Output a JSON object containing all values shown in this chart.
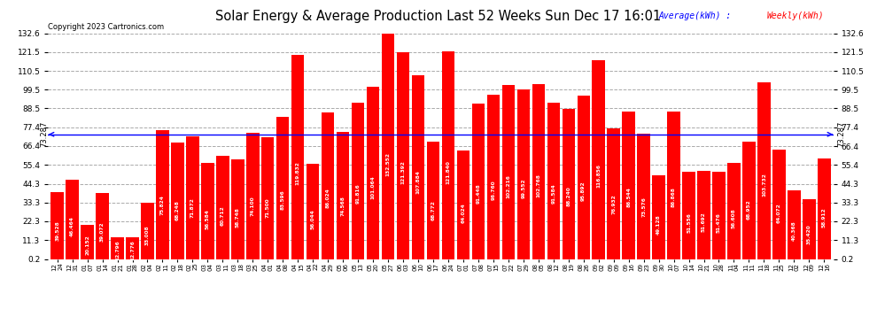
{
  "title": "Solar Energy & Average Production Last 52 Weeks Sun Dec 17 16:01",
  "copyright": "Copyright 2023 Cartronics.com",
  "average_label": "Average(kWh)",
  "weekly_label": "Weekly(kWh)",
  "average_value": 73.287,
  "bar_color": "#FF0000",
  "average_line_color": "#0000FF",
  "background_color": "#FFFFFF",
  "grid_color": "#AAAAAA",
  "ylim_min": 0.2,
  "ylim_max": 132.6,
  "yticks": [
    0.2,
    11.3,
    22.3,
    33.3,
    44.3,
    55.4,
    66.4,
    77.4,
    88.5,
    99.5,
    110.5,
    121.5,
    132.6
  ],
  "categories": [
    "12-24",
    "12-31",
    "01-07",
    "01-14",
    "01-21",
    "01-28",
    "02-04",
    "02-11",
    "02-18",
    "02-25",
    "03-04",
    "03-11",
    "03-18",
    "03-25",
    "04-01",
    "04-08",
    "04-15",
    "04-22",
    "04-29",
    "05-06",
    "05-13",
    "05-20",
    "05-27",
    "06-03",
    "06-10",
    "06-17",
    "06-24",
    "07-01",
    "07-08",
    "07-15",
    "07-22",
    "07-29",
    "08-05",
    "08-12",
    "08-19",
    "08-26",
    "09-02",
    "09-09",
    "09-16",
    "09-23",
    "09-30",
    "10-07",
    "10-14",
    "10-21",
    "10-28",
    "11-04",
    "11-11",
    "11-18",
    "11-25",
    "12-02",
    "12-09",
    "12-16"
  ],
  "values": [
    39.528,
    46.464,
    20.152,
    39.072,
    12.796,
    12.776,
    33.008,
    75.824,
    68.248,
    71.872,
    56.584,
    60.712,
    58.748,
    74.1,
    71.5,
    83.596,
    119.832,
    56.044,
    86.024,
    74.568,
    91.816,
    101.064,
    132.552,
    121.392,
    107.884,
    68.772,
    121.84,
    64.024,
    91.448,
    96.76,
    102.216,
    99.552,
    102.768,
    91.584,
    88.24,
    95.892,
    116.856,
    76.932,
    86.544,
    73.576,
    49.128,
    86.868,
    51.556,
    51.692,
    51.476,
    56.608,
    68.952,
    103.732,
    64.072,
    40.368,
    35.42,
    58.912
  ]
}
